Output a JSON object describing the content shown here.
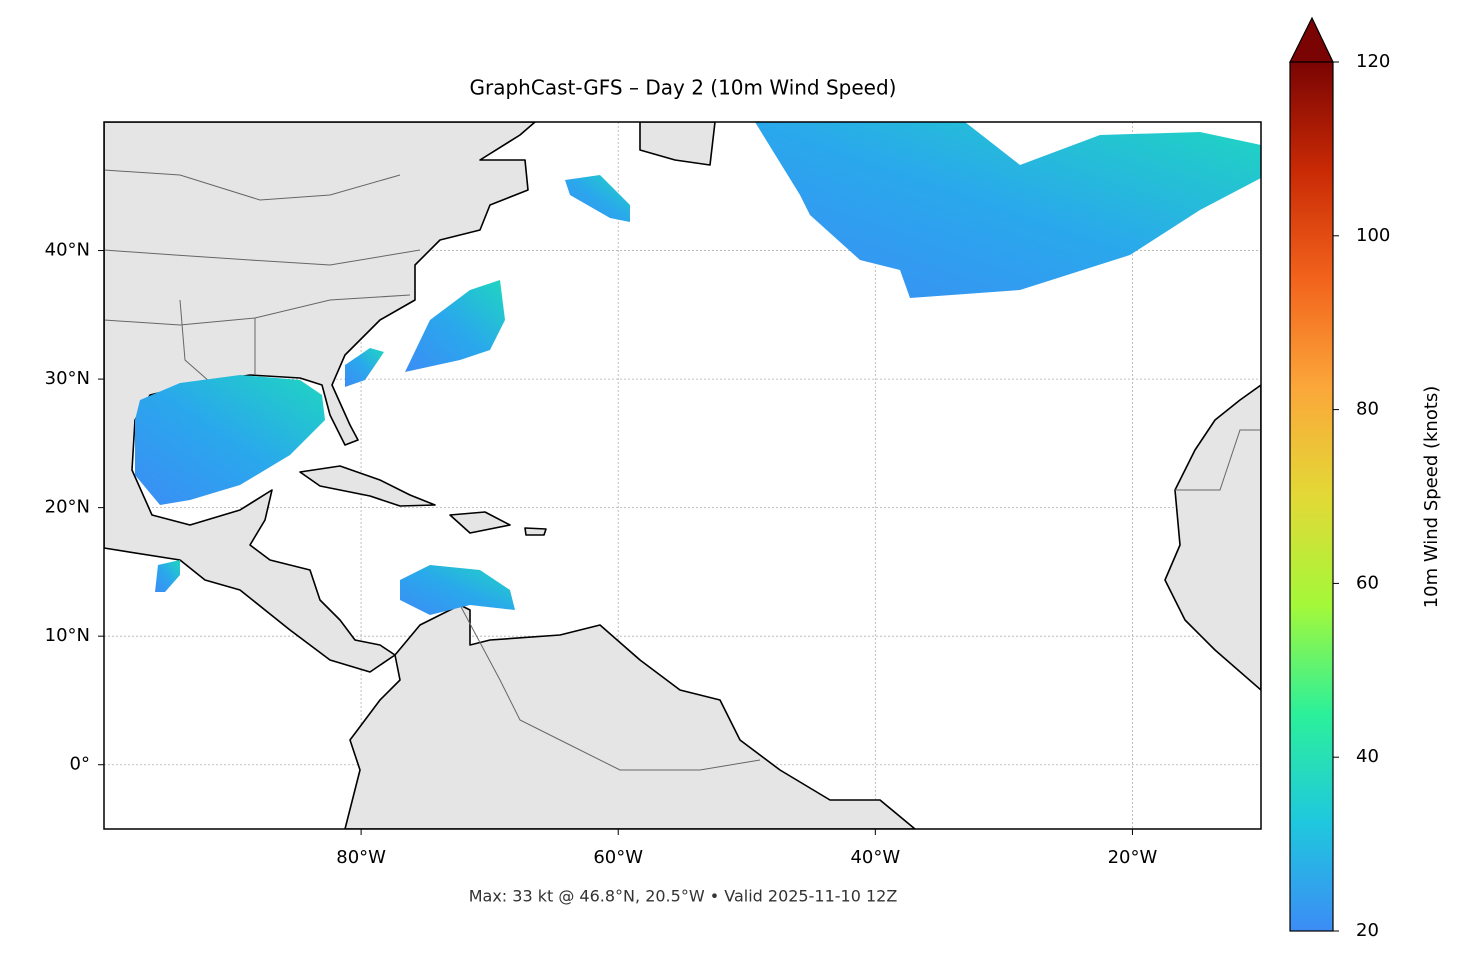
{
  "title": "GraphCast-GFS – Day 2 (10m Wind Speed)",
  "footnote": "Max: 33 kt @ 46.8°N, 20.5°W • Valid 2025-11-10 12Z",
  "map": {
    "xlim": [
      -100,
      -10
    ],
    "ylim": [
      -5,
      50
    ],
    "xticks": [
      {
        "value": -80,
        "label": "80°W"
      },
      {
        "value": -60,
        "label": "60°W"
      },
      {
        "value": -40,
        "label": "40°W"
      },
      {
        "value": -20,
        "label": "20°W"
      }
    ],
    "yticks": [
      {
        "value": 0,
        "label": "0°"
      },
      {
        "value": 10,
        "label": "10°N"
      },
      {
        "value": 20,
        "label": "20°N"
      },
      {
        "value": 30,
        "label": "30°N"
      },
      {
        "value": 40,
        "label": "40°N"
      }
    ],
    "grid": true
  },
  "colorbar": {
    "label": "10m Wind Speed (knots)",
    "lim": [
      20,
      120
    ],
    "ticks": [
      20,
      40,
      60,
      80,
      100,
      120
    ],
    "colors": [
      "#3c8cf5",
      "#1fc8de",
      "#2cf09a",
      "#a4f83a",
      "#e3d936",
      "#fba73a",
      "#f2631c",
      "#c92a05",
      "#7a0403"
    ]
  }
}
